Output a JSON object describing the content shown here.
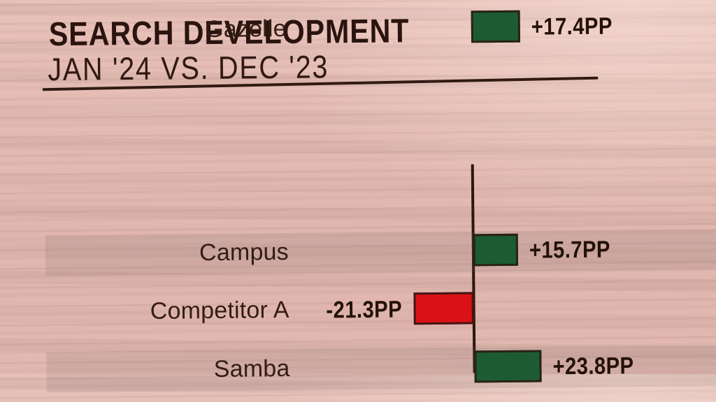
{
  "header": {
    "title": "SEARCH DEVELOPMENT",
    "subtitle": "JAN '24 VS. DEC '23"
  },
  "chart_data": {
    "type": "bar",
    "orientation": "horizontal",
    "title": "SEARCH DEVELOPMENT",
    "subtitle": "JAN '24 VS. DEC '23",
    "unit": "PP",
    "xlabel": "",
    "ylabel": "",
    "baseline": 0,
    "xlim": [
      -25,
      30
    ],
    "grid": false,
    "legend": "none",
    "categories": [
      "Campus",
      "Competitor A",
      "Samba",
      "Gazelle"
    ],
    "values": [
      15.7,
      -21.3,
      23.8,
      17.4
    ],
    "rows": [
      {
        "label": "Campus",
        "value": 15.7,
        "value_label": "+15.7PP",
        "direction": "positive",
        "shaded": true
      },
      {
        "label": "Competitor A",
        "value": -21.3,
        "value_label": "-21.3PP",
        "direction": "negative",
        "shaded": false
      },
      {
        "label": "Samba",
        "value": 23.8,
        "value_label": "+23.8PP",
        "direction": "positive",
        "shaded": true
      },
      {
        "label": "Gazelle",
        "value": 17.4,
        "value_label": "+17.4PP",
        "direction": "positive",
        "shaded": false
      }
    ],
    "colors": {
      "positive": "#1d5c33",
      "negative": "#da1117",
      "axis": "#2c1710",
      "text": "#2b1711",
      "row_band": "rgba(117,100,102,0.16)",
      "background": "#e3bab1"
    }
  }
}
